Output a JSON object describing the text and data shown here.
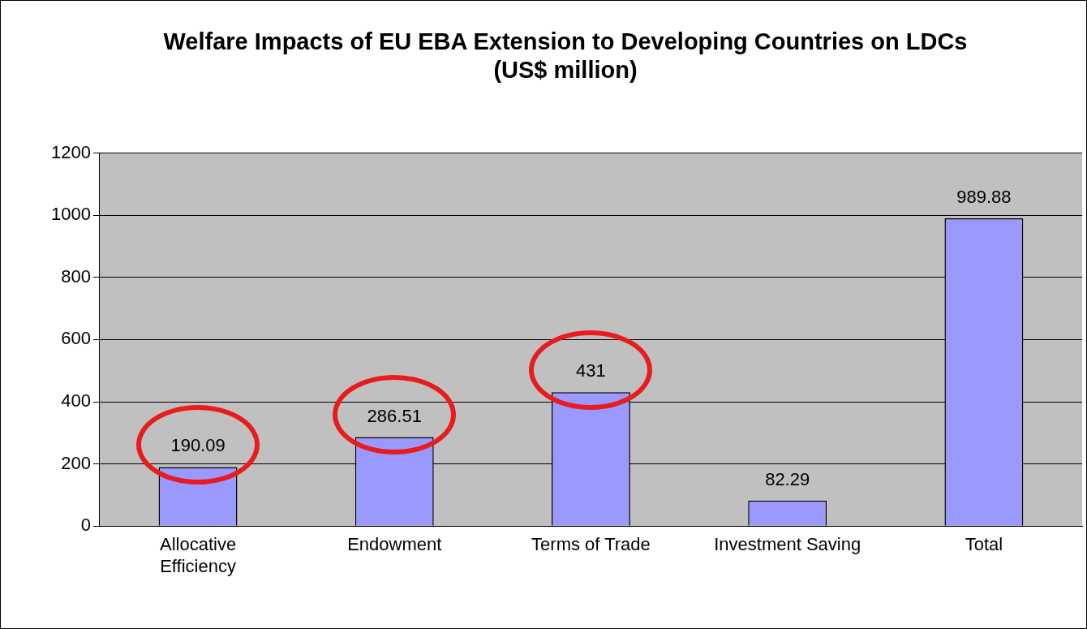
{
  "chart_data": {
    "type": "bar",
    "title": "Welfare Impacts of EU EBA Extension to Developing Countries on LDCs (US$ million)",
    "categories": [
      "Allocative Efficiency",
      "Endowment",
      "Terms of Trade",
      "Investment Saving",
      "Total"
    ],
    "values": [
      190.09,
      286.51,
      431,
      82.29,
      989.88
    ],
    "color": "#9999ff",
    "ylim": [
      0,
      1200
    ],
    "yticks": [
      0,
      200,
      400,
      600,
      800,
      1000,
      1200
    ],
    "grid": "y",
    "data_labels": true,
    "legend": false
  }
}
